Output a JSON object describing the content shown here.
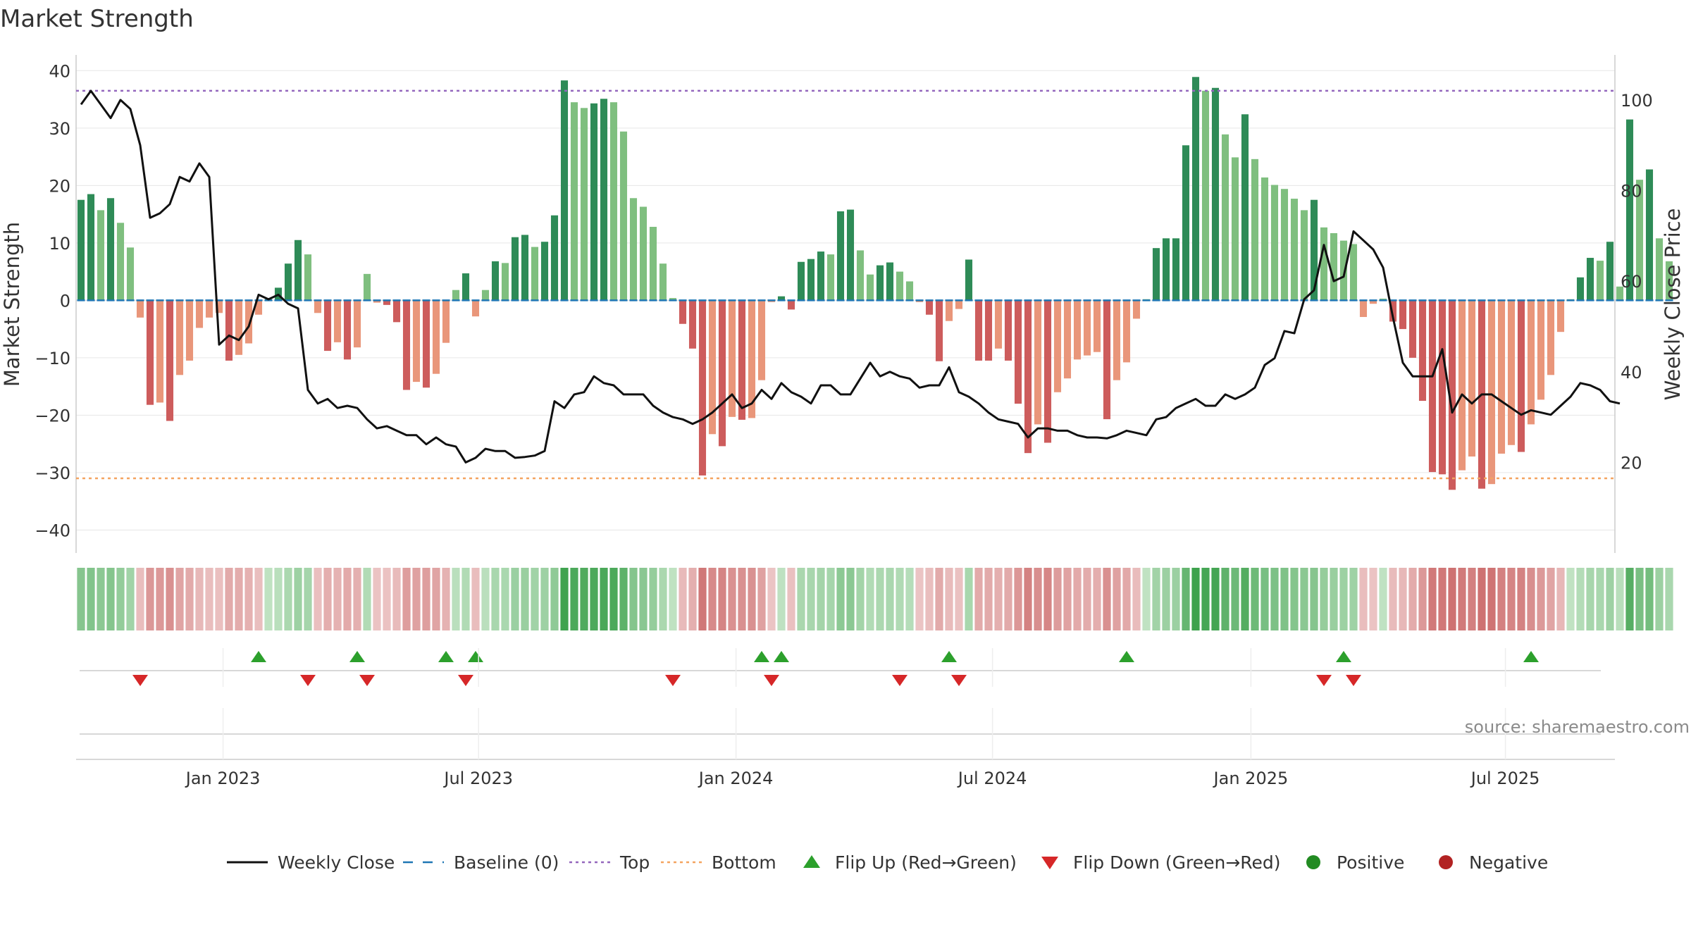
{
  "chart_data": {
    "type": "bar",
    "title": "Market Strength",
    "ylabel": "Market Strength",
    "ylabel_right": "Weekly Close Price",
    "ylim": [
      -44,
      42
    ],
    "ylim_right": [
      0,
      109
    ],
    "yticks": [
      -40,
      -30,
      -20,
      -10,
      0,
      10,
      20,
      30,
      40
    ],
    "yticks_labels": [
      "−40",
      "−30",
      "−20",
      "−10",
      "0",
      "10",
      "20",
      "30",
      "40"
    ],
    "yticks_right": [
      20,
      40,
      60,
      80,
      100
    ],
    "x_start": "2022-09-23",
    "x_range_weeks": [
      -0.5,
      155.5
    ],
    "x_ticks": [
      {
        "label": "Jan 2023",
        "week": 14.4
      },
      {
        "label": "Jul 2023",
        "week": 40.3
      },
      {
        "label": "Jan 2024",
        "week": 66.4
      },
      {
        "label": "Jul 2024",
        "week": 92.4
      },
      {
        "label": "Jan 2025",
        "week": 118.6
      },
      {
        "label": "Jul 2025",
        "week": 144.4
      }
    ],
    "top_line": 36.5,
    "bottom_line": -31,
    "strength": [
      17.5,
      18.5,
      15.7,
      17.8,
      13.5,
      9.2,
      -3,
      -18.2,
      -17.8,
      -21,
      -13,
      -10.5,
      -4.8,
      -3,
      -2.2,
      -10.5,
      -9.5,
      -7.5,
      -2.5,
      0.4,
      2.2,
      6.4,
      10.5,
      8,
      -2.2,
      -8.8,
      -7.3,
      -10.3,
      -8.2,
      4.6,
      -0.4,
      -0.8,
      -3.8,
      -15.6,
      -14.2,
      -15.2,
      -12.8,
      -7.4,
      1.8,
      4.7,
      -2.8,
      1.8,
      6.8,
      6.5,
      11,
      11.4,
      9.3,
      10.2,
      14.8,
      38.3,
      34.5,
      33.5,
      34.3,
      35.1,
      34.5,
      29.4,
      17.8,
      16.3,
      12.8,
      6.4,
      0.4,
      -4.1,
      -8.4,
      -30.5,
      -23.3,
      -25.4,
      -20.3,
      -20.8,
      -20.5,
      -13.9,
      -0.3,
      0.7,
      -1.6,
      6.7,
      7.2,
      8.5,
      8,
      15.5,
      15.8,
      8.7,
      4.5,
      6.1,
      6.6,
      5,
      3.3,
      -0.3,
      -2.5,
      -10.6,
      -3.6,
      -1.5,
      7.1,
      -10.5,
      -10.5,
      -8.4,
      -10.5,
      -18,
      -26.6,
      -21.6,
      -24.8,
      -16,
      -13.6,
      -10.3,
      -9.6,
      -9,
      -20.7,
      -13.9,
      -10.8,
      -3.2,
      0.2,
      9.1,
      10.8,
      10.8,
      27,
      38.9,
      36.5,
      37,
      28.9,
      24.9,
      32.4,
      24.6,
      21.4,
      20.1,
      19.4,
      17.7,
      15.7,
      17.5,
      12.7,
      11.7,
      10.4,
      9.8,
      -2.9,
      -0.6,
      0.3,
      -3.7,
      -5,
      -10,
      -17.5,
      -29.9,
      -30.3,
      -33,
      -29.6,
      -27.2,
      -32.8,
      -32,
      -26.7,
      -25.2,
      -26.4,
      -21.6,
      -17.3,
      -13,
      -5.5,
      0.2,
      4,
      7.4,
      6.9,
      10.2,
      2.4,
      31.5,
      21,
      22.8,
      10.8,
      6.8
    ],
    "weekly_close": [
      [
        0,
        99
      ],
      [
        1,
        102
      ],
      [
        2,
        99
      ],
      [
        3,
        96
      ],
      [
        4,
        100
      ],
      [
        5,
        98
      ],
      [
        6,
        90
      ],
      [
        7,
        74
      ],
      [
        8,
        75
      ],
      [
        9,
        77
      ],
      [
        10,
        83
      ],
      [
        11,
        82
      ],
      [
        12,
        86
      ],
      [
        13,
        83
      ],
      [
        14,
        46
      ],
      [
        15,
        48
      ],
      [
        16,
        47
      ],
      [
        17,
        50
      ],
      [
        18,
        57
      ],
      [
        19,
        56
      ],
      [
        20,
        57
      ],
      [
        21,
        55
      ],
      [
        22,
        54
      ],
      [
        23,
        36
      ],
      [
        24,
        33
      ],
      [
        25,
        34
      ],
      [
        26,
        32
      ],
      [
        27,
        32.5
      ],
      [
        28,
        32
      ],
      [
        29,
        29.5
      ],
      [
        30,
        27.5
      ],
      [
        31,
        28
      ],
      [
        32,
        27
      ],
      [
        33,
        26
      ],
      [
        34,
        26
      ],
      [
        35,
        24
      ],
      [
        36,
        25.5
      ],
      [
        37,
        24
      ],
      [
        38,
        23.5
      ],
      [
        39,
        20
      ],
      [
        40,
        21
      ],
      [
        41,
        23
      ],
      [
        42,
        22.5
      ],
      [
        43,
        22.5
      ],
      [
        44,
        21
      ],
      [
        45,
        21.2
      ],
      [
        46,
        21.5
      ],
      [
        47,
        22.5
      ],
      [
        48,
        33.5
      ],
      [
        49,
        32
      ],
      [
        50,
        35
      ],
      [
        51,
        35.5
      ],
      [
        52,
        39
      ],
      [
        53,
        37.5
      ],
      [
        54,
        37
      ],
      [
        55,
        35
      ],
      [
        56,
        35
      ],
      [
        57,
        35
      ],
      [
        58,
        32.5
      ],
      [
        59,
        31
      ],
      [
        60,
        30
      ],
      [
        61,
        29.5
      ],
      [
        62,
        28.5
      ],
      [
        63,
        29.5
      ],
      [
        64,
        31
      ],
      [
        65,
        33
      ],
      [
        66,
        35
      ],
      [
        67,
        32
      ],
      [
        68,
        33
      ],
      [
        69,
        36
      ],
      [
        70,
        34
      ],
      [
        71,
        37.5
      ],
      [
        72,
        35.5
      ],
      [
        73,
        34.5
      ],
      [
        74,
        33
      ],
      [
        75,
        37
      ],
      [
        76,
        37
      ],
      [
        77,
        35
      ],
      [
        78,
        35
      ],
      [
        79,
        38.5
      ],
      [
        80,
        42
      ],
      [
        81,
        39
      ],
      [
        82,
        40
      ],
      [
        83,
        39
      ],
      [
        84,
        38.5
      ],
      [
        85,
        36.5
      ],
      [
        86,
        37
      ],
      [
        87,
        37
      ],
      [
        88,
        41
      ],
      [
        89,
        35.5
      ],
      [
        90,
        34.5
      ],
      [
        91,
        33
      ],
      [
        92,
        31
      ],
      [
        93,
        29.5
      ],
      [
        94,
        29
      ],
      [
        95,
        28.5
      ],
      [
        96,
        25.5
      ],
      [
        97,
        27.5
      ],
      [
        98,
        27.5
      ],
      [
        99,
        27
      ],
      [
        100,
        27
      ],
      [
        101,
        26
      ],
      [
        102,
        25.5
      ],
      [
        103,
        25.5
      ],
      [
        104,
        25.3
      ],
      [
        105,
        26
      ],
      [
        106,
        27
      ],
      [
        107,
        26.5
      ],
      [
        108,
        26
      ],
      [
        109,
        29.5
      ],
      [
        110,
        30
      ],
      [
        111,
        32
      ],
      [
        112,
        33
      ],
      [
        113,
        34
      ],
      [
        114,
        32.5
      ],
      [
        115,
        32.5
      ],
      [
        116,
        35
      ],
      [
        117,
        34
      ],
      [
        118,
        35
      ],
      [
        119,
        36.5
      ],
      [
        120,
        41.5
      ],
      [
        121,
        43
      ],
      [
        122,
        49
      ],
      [
        123,
        48.5
      ],
      [
        124,
        56
      ],
      [
        125,
        58
      ],
      [
        126,
        68
      ],
      [
        127,
        60
      ],
      [
        128,
        61
      ],
      [
        129,
        71
      ],
      [
        130,
        69
      ],
      [
        131,
        67
      ],
      [
        132,
        63
      ],
      [
        133,
        52
      ],
      [
        134,
        42
      ],
      [
        135,
        39
      ],
      [
        136,
        39
      ],
      [
        137,
        39
      ],
      [
        138,
        45
      ],
      [
        139,
        31
      ],
      [
        140,
        35
      ],
      [
        141,
        33
      ],
      [
        142,
        35
      ],
      [
        143,
        35
      ],
      [
        144,
        33.5
      ],
      [
        145,
        32
      ],
      [
        146,
        30.5
      ],
      [
        147,
        31.5
      ],
      [
        148,
        31
      ],
      [
        149,
        30.5
      ],
      [
        150,
        32.5
      ],
      [
        151,
        34.5
      ],
      [
        152,
        37.5
      ],
      [
        153,
        37
      ],
      [
        154,
        36
      ],
      [
        155,
        33.5
      ],
      [
        156,
        33
      ]
    ],
    "flip_up_weeks": [
      18,
      28,
      37,
      40,
      69,
      71,
      88,
      106,
      128,
      147
    ],
    "flip_down_weeks": [
      6,
      23,
      29,
      39,
      60,
      70,
      83,
      89,
      126,
      129
    ],
    "legend": [
      {
        "label": "Weekly Close",
        "marker": "line"
      },
      {
        "label": "Baseline (0)",
        "marker": "dash"
      },
      {
        "label": "Top",
        "marker": "dot"
      },
      {
        "label": "Bottom",
        "marker": "dot"
      },
      {
        "label": "Flip Up (Red→Green)",
        "marker": "triangle-up"
      },
      {
        "label": "Flip Down (Green→Red)",
        "marker": "triangle-down"
      },
      {
        "label": "Positive",
        "marker": "circle"
      },
      {
        "label": "Negative",
        "marker": "circle"
      }
    ],
    "source": "source: sharemaestro.com"
  },
  "colors": {
    "pos_strong": "#2e8b57",
    "pos_weak": "#7fbf7f",
    "neg_strong": "#cd5c5c",
    "neg_weak": "#e9967a",
    "baseline": "#1f77b4",
    "top": "#9467bd",
    "bottom": "#f4a460",
    "close": "#111111",
    "flip_up": "#2ca02c",
    "flip_down": "#d62728",
    "positive": "#228b22",
    "negative": "#b22222",
    "grid": "#e6e6e6",
    "axis": "#cccccc"
  }
}
